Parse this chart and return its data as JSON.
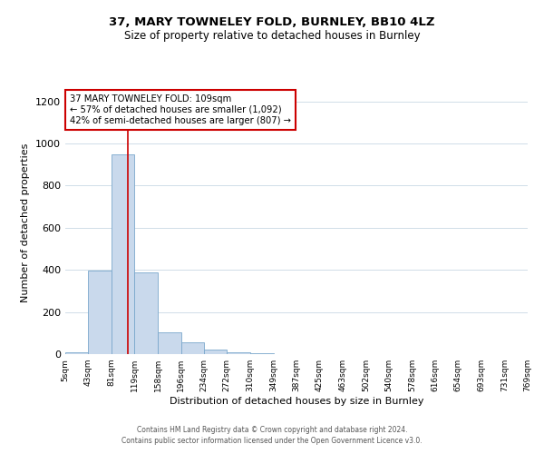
{
  "title": "37, MARY TOWNELEY FOLD, BURNLEY, BB10 4LZ",
  "subtitle": "Size of property relative to detached houses in Burnley",
  "xlabel": "Distribution of detached houses by size in Burnley",
  "ylabel": "Number of detached properties",
  "bar_color": "#c9d9ec",
  "bar_edge_color": "#7aa8cc",
  "bins": [
    "5sqm",
    "43sqm",
    "81sqm",
    "119sqm",
    "158sqm",
    "196sqm",
    "234sqm",
    "272sqm",
    "310sqm",
    "349sqm",
    "387sqm",
    "425sqm",
    "463sqm",
    "502sqm",
    "540sqm",
    "578sqm",
    "616sqm",
    "654sqm",
    "693sqm",
    "731sqm",
    "769sqm"
  ],
  "values": [
    10,
    395,
    950,
    390,
    105,
    55,
    22,
    8,
    3,
    0,
    0,
    0,
    0,
    0,
    0,
    0,
    0,
    0,
    0,
    0
  ],
  "bin_edges_sqm": [
    5,
    43,
    81,
    119,
    158,
    196,
    234,
    272,
    310,
    349,
    387,
    425,
    463,
    502,
    540,
    578,
    616,
    654,
    693,
    731,
    769
  ],
  "annotation_line1": "37 MARY TOWNELEY FOLD: 109sqm",
  "annotation_line2": "← 57% of detached houses are smaller (1,092)",
  "annotation_line3": "42% of semi-detached houses are larger (807) →",
  "annotation_box_color": "#ffffff",
  "annotation_box_edge_color": "#cc0000",
  "vline_color": "#cc0000",
  "ylim": [
    0,
    1250
  ],
  "yticks": [
    0,
    200,
    400,
    600,
    800,
    1000,
    1200
  ],
  "footer_line1": "Contains HM Land Registry data © Crown copyright and database right 2024.",
  "footer_line2": "Contains public sector information licensed under the Open Government Licence v3.0.",
  "background_color": "#ffffff",
  "grid_color": "#d0dde8",
  "property_line_x": 109
}
